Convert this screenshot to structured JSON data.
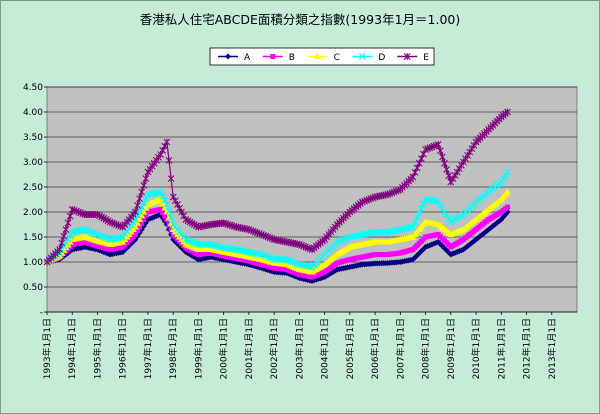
{
  "chart_data": {
    "type": "line",
    "title": "香港私人住宅ABCDE面積分類之指數(1993年1月＝1.00)",
    "xlabel": "",
    "ylabel": "",
    "x_tick_labels": [
      "1993年1月1日",
      "1994年1月1日",
      "1995年1月1日",
      "1996年1月1日",
      "1997年1月1日",
      "1998年1月1日",
      "1999年1月1日",
      "2000年1月1日",
      "2001年1月1日",
      "2002年1月1日",
      "2003年1月1日",
      "2004年1月1日",
      "2005年1月1日",
      "2006年1月1日",
      "2007年1月1日",
      "2008年1月1日",
      "2009年1月1日",
      "2010年1月1日",
      "2011年1月1日",
      "2012年1月1日",
      "2013年1月1日"
    ],
    "y_tick_labels": [
      "-",
      "0.50",
      "1.00",
      "1.50",
      "2.00",
      "2.50",
      "3.00",
      "3.50",
      "4.00",
      "4.50"
    ],
    "ylim": [
      0,
      4.5
    ],
    "xlim": [
      1993.0,
      2014.0
    ],
    "grid": true,
    "legend_position": "top",
    "plot_background": "#c0c0c0",
    "frame_background": "#c6ecd8",
    "series": [
      {
        "name": "A",
        "color": "#000080",
        "marker": "diamond",
        "x": [
          1993.0,
          1993.5,
          1994.0,
          1994.5,
          1995.0,
          1995.5,
          1996.0,
          1996.5,
          1997.0,
          1997.5,
          1997.75,
          1998.0,
          1998.5,
          1999.0,
          1999.5,
          2000.0,
          2000.5,
          2001.0,
          2001.5,
          2002.0,
          2002.5,
          2003.0,
          2003.5,
          2004.0,
          2004.5,
          2005.0,
          2005.5,
          2006.0,
          2006.5,
          2007.0,
          2007.5,
          2008.0,
          2008.5,
          2009.0,
          2009.5,
          2010.0,
          2010.5,
          2011.0,
          2011.25
        ],
        "values": [
          1.0,
          1.05,
          1.25,
          1.3,
          1.25,
          1.15,
          1.2,
          1.45,
          1.85,
          1.95,
          1.75,
          1.45,
          1.2,
          1.05,
          1.1,
          1.05,
          1.0,
          0.95,
          0.88,
          0.8,
          0.78,
          0.68,
          0.62,
          0.7,
          0.85,
          0.9,
          0.95,
          0.97,
          0.98,
          1.0,
          1.05,
          1.3,
          1.4,
          1.15,
          1.25,
          1.45,
          1.65,
          1.85,
          2.0
        ]
      },
      {
        "name": "B",
        "color": "#ff00ff",
        "marker": "square",
        "x": [
          1993.0,
          1993.5,
          1994.0,
          1994.5,
          1995.0,
          1995.5,
          1996.0,
          1996.5,
          1997.0,
          1997.5,
          1997.75,
          1998.0,
          1998.5,
          1999.0,
          1999.5,
          2000.0,
          2000.5,
          2001.0,
          2001.5,
          2002.0,
          2002.5,
          2003.0,
          2003.5,
          2004.0,
          2004.5,
          2005.0,
          2005.5,
          2006.0,
          2006.5,
          2007.0,
          2007.5,
          2008.0,
          2008.5,
          2009.0,
          2009.5,
          2010.0,
          2010.5,
          2011.0,
          2011.25
        ],
        "values": [
          1.0,
          1.08,
          1.35,
          1.4,
          1.32,
          1.25,
          1.3,
          1.55,
          2.0,
          2.05,
          1.85,
          1.55,
          1.28,
          1.15,
          1.18,
          1.12,
          1.07,
          1.02,
          0.95,
          0.88,
          0.85,
          0.75,
          0.7,
          0.8,
          0.98,
          1.05,
          1.1,
          1.15,
          1.15,
          1.18,
          1.25,
          1.5,
          1.55,
          1.3,
          1.45,
          1.65,
          1.85,
          2.0,
          2.1
        ]
      },
      {
        "name": "C",
        "color": "#ffff00",
        "marker": "triangle",
        "x": [
          1993.0,
          1993.5,
          1994.0,
          1994.5,
          1995.0,
          1995.5,
          1996.0,
          1996.5,
          1997.0,
          1997.5,
          1997.75,
          1998.0,
          1998.5,
          1999.0,
          1999.5,
          2000.0,
          2000.5,
          2001.0,
          2001.5,
          2002.0,
          2002.5,
          2003.0,
          2003.5,
          2004.0,
          2004.5,
          2005.0,
          2005.5,
          2006.0,
          2006.5,
          2007.0,
          2007.5,
          2008.0,
          2008.5,
          2009.0,
          2009.5,
          2010.0,
          2010.5,
          2011.0,
          2011.25
        ],
        "values": [
          1.0,
          1.12,
          1.45,
          1.5,
          1.42,
          1.35,
          1.4,
          1.7,
          2.15,
          2.25,
          2.0,
          1.65,
          1.35,
          1.25,
          1.25,
          1.2,
          1.15,
          1.1,
          1.05,
          0.98,
          0.95,
          0.85,
          0.8,
          0.95,
          1.15,
          1.3,
          1.35,
          1.4,
          1.4,
          1.45,
          1.5,
          1.8,
          1.75,
          1.55,
          1.65,
          1.85,
          2.05,
          2.25,
          2.4
        ]
      },
      {
        "name": "D",
        "color": "#00ffff",
        "marker": "x",
        "x": [
          1993.0,
          1993.5,
          1994.0,
          1994.5,
          1995.0,
          1995.5,
          1996.0,
          1996.5,
          1997.0,
          1997.5,
          1997.75,
          1998.0,
          1998.5,
          1999.0,
          1999.5,
          2000.0,
          2000.5,
          2001.0,
          2001.5,
          2002.0,
          2002.5,
          2003.0,
          2003.5,
          2004.0,
          2004.5,
          2005.0,
          2005.5,
          2006.0,
          2006.5,
          2007.0,
          2007.5,
          2008.0,
          2008.5,
          2009.0,
          2009.5,
          2010.0,
          2010.5,
          2011.0,
          2011.25
        ],
        "values": [
          1.0,
          1.18,
          1.6,
          1.65,
          1.55,
          1.45,
          1.5,
          1.85,
          2.35,
          2.4,
          2.15,
          1.75,
          1.45,
          1.35,
          1.35,
          1.28,
          1.25,
          1.2,
          1.15,
          1.05,
          1.05,
          0.95,
          0.9,
          1.15,
          1.4,
          1.5,
          1.55,
          1.6,
          1.6,
          1.65,
          1.7,
          2.25,
          2.2,
          1.8,
          1.95,
          2.2,
          2.4,
          2.6,
          2.8
        ]
      },
      {
        "name": "E",
        "color": "#800080",
        "marker": "star",
        "x": [
          1993.0,
          1993.5,
          1994.0,
          1994.5,
          1995.0,
          1995.5,
          1996.0,
          1996.5,
          1997.0,
          1997.5,
          1997.75,
          1998.0,
          1998.5,
          1999.0,
          1999.5,
          2000.0,
          2000.5,
          2001.0,
          2001.5,
          2002.0,
          2002.5,
          2003.0,
          2003.5,
          2004.0,
          2004.5,
          2005.0,
          2005.5,
          2006.0,
          2006.5,
          2007.0,
          2007.5,
          2008.0,
          2008.5,
          2009.0,
          2009.5,
          2010.0,
          2010.5,
          2011.0,
          2011.25
        ],
        "values": [
          1.0,
          1.25,
          2.05,
          1.95,
          1.95,
          1.8,
          1.7,
          2.0,
          2.8,
          3.15,
          3.4,
          2.3,
          1.85,
          1.7,
          1.75,
          1.78,
          1.7,
          1.65,
          1.55,
          1.45,
          1.4,
          1.35,
          1.25,
          1.45,
          1.75,
          2.0,
          2.2,
          2.3,
          2.35,
          2.45,
          2.7,
          3.25,
          3.35,
          2.6,
          3.0,
          3.4,
          3.65,
          3.9,
          4.0
        ]
      }
    ]
  }
}
